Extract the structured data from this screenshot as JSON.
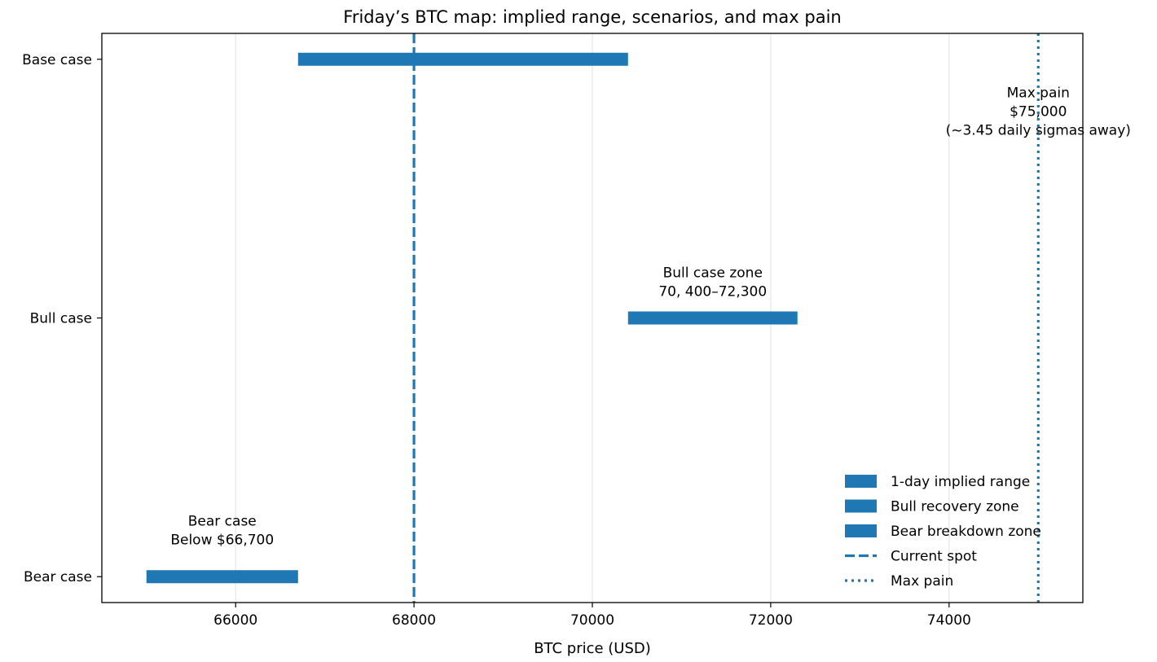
{
  "chart_data": {
    "type": "bar",
    "orientation": "horizontal-range",
    "title": "Friday’s BTC map: implied range, scenarios, and max pain",
    "xlabel": "BTC price (USD)",
    "ylabel": "",
    "xlim": [
      64500,
      75500
    ],
    "ylim": [
      -0.1,
      2.1
    ],
    "xticks": [
      66000,
      68000,
      70000,
      72000,
      74000
    ],
    "categories": [
      "Bear case",
      "Bull case",
      "Base case"
    ],
    "grid": "x",
    "legend_position": "bottom-right",
    "color": "#1f77b4",
    "ranges": [
      {
        "category": "Base case",
        "start": 66700,
        "end": 70400,
        "legend": "1-day implied range"
      },
      {
        "category": "Bull case",
        "start": 70400,
        "end": 72300,
        "legend": "Bull recovery zone"
      },
      {
        "category": "Bear case",
        "start": 65000,
        "end": 66700,
        "legend": "Bear breakdown zone"
      }
    ],
    "lines": [
      {
        "x": 68000,
        "style": "dashed",
        "legend": "Current spot"
      },
      {
        "x": 75000,
        "style": "dotted",
        "legend": "Max pain"
      }
    ],
    "annotations": [
      {
        "lines": [
          "Bull case zone",
          "70, 400–72,300"
        ],
        "x": 71350,
        "y": 1.14
      },
      {
        "lines": [
          "Bear case",
          "Below $66,700"
        ],
        "x": 65850,
        "y": 0.18
      },
      {
        "lines": [
          "Max pain",
          "$75,000",
          "(~3.45 daily sigmas away)"
        ],
        "x": 75000,
        "y": 1.8
      }
    ]
  }
}
